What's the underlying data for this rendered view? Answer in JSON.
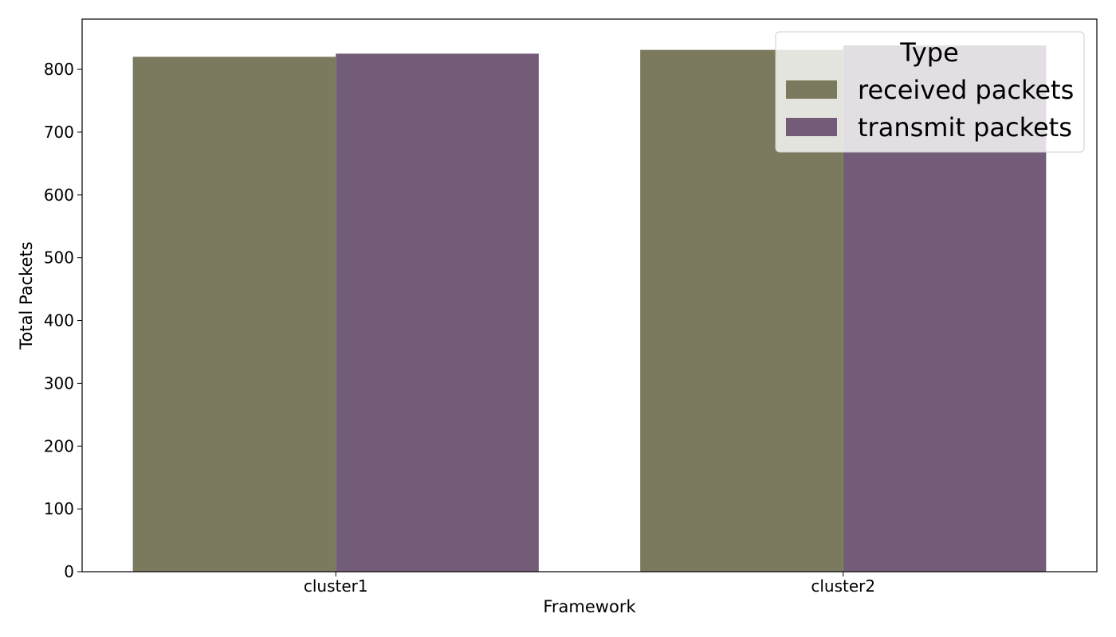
{
  "chart_data": {
    "type": "bar",
    "xlabel": "Framework",
    "ylabel": "Total Packets",
    "categories": [
      "cluster1",
      "cluster2"
    ],
    "series": [
      {
        "name": "received packets",
        "values": [
          820,
          831
        ],
        "color": "#7b7a5e"
      },
      {
        "name": "transmit packets",
        "values": [
          825,
          838
        ],
        "color": "#725c77"
      }
    ],
    "ylim": [
      0,
      880
    ],
    "yticks": [
      0,
      100,
      200,
      300,
      400,
      500,
      600,
      700,
      800
    ],
    "legend": {
      "title": "Type",
      "position": "top-right"
    },
    "grid": false
  }
}
